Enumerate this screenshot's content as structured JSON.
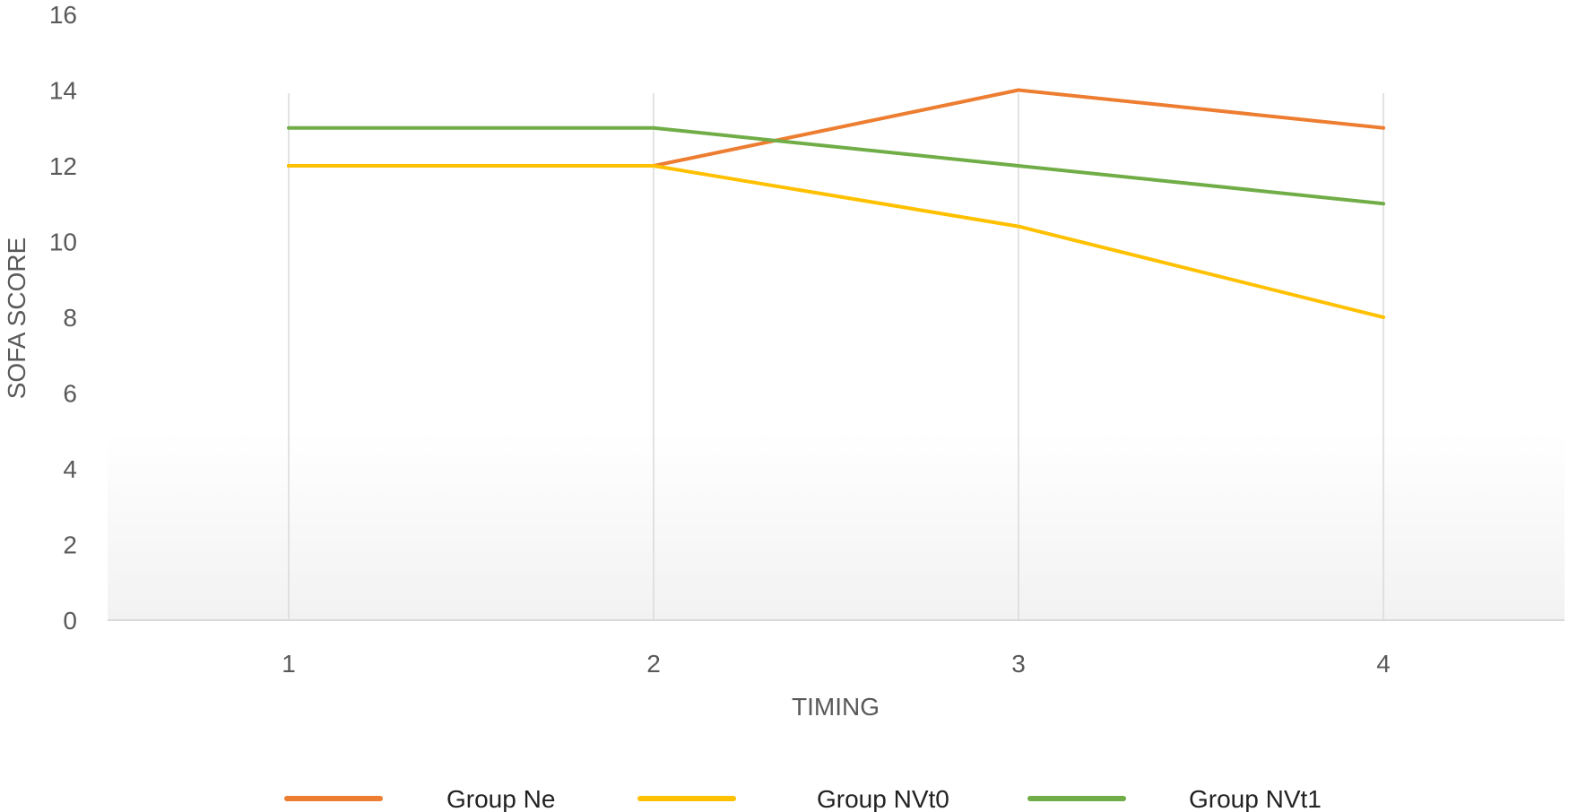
{
  "chart_data": {
    "type": "line",
    "x": [
      1,
      2,
      3,
      4
    ],
    "categories": [
      "1",
      "2",
      "3",
      "4"
    ],
    "series": [
      {
        "name": "Group Ne",
        "values": [
          12,
          12,
          14,
          13
        ],
        "color": "#ED7D31"
      },
      {
        "name": "Group NVt0",
        "values": [
          12,
          12,
          10.4,
          8
        ],
        "color": "#FFC000"
      },
      {
        "name": "Group NVt1",
        "values": [
          13,
          13,
          12,
          11
        ],
        "color": "#70AD47"
      }
    ],
    "xlabel": "TIMING",
    "ylabel": "SOFA SCORE",
    "ylim": [
      0,
      16
    ],
    "yticks": [
      0,
      2,
      4,
      6,
      8,
      10,
      12,
      14,
      16
    ],
    "grid": "vertical",
    "legend_position": "bottom",
    "colors": {
      "gridline": "#D9D9D9",
      "axis": "#D9D9D9",
      "text": "#595959"
    }
  }
}
